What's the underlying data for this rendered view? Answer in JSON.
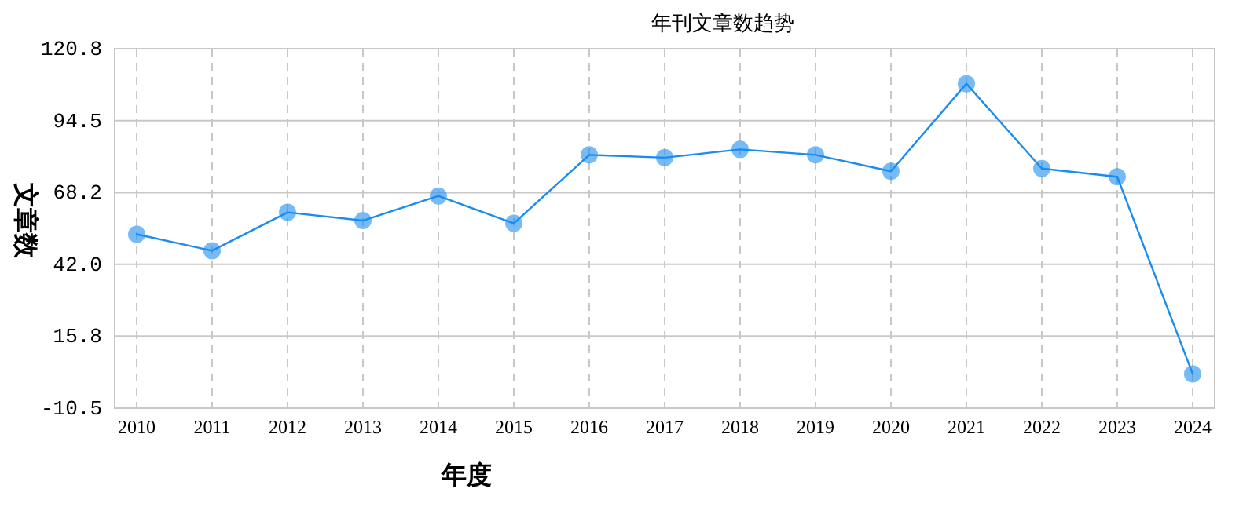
{
  "chart_data": {
    "type": "line",
    "title": "年刊文章数趋势",
    "xlabel": "年度",
    "ylabel": "文章数",
    "categories": [
      "2010",
      "2011",
      "2012",
      "2013",
      "2014",
      "2015",
      "2016",
      "2017",
      "2018",
      "2019",
      "2020",
      "2021",
      "2022",
      "2023",
      "2024"
    ],
    "series": [
      {
        "color": "#1a8cf0",
        "values": [
          53,
          47,
          61,
          58,
          67,
          57,
          82,
          81,
          84,
          82,
          76,
          108,
          77,
          74,
          2
        ]
      }
    ],
    "ylim": [
      -10.5,
      120.8
    ],
    "yticks": [
      -10.5,
      15.8,
      {
        "value": 42,
        "label": "42.0"
      },
      68.2,
      94.5,
      120.8
    ],
    "grid": true,
    "marker": "circle",
    "line_style": "solid"
  }
}
